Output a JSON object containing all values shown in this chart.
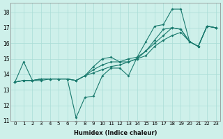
{
  "xlabel": "Humidex (Indice chaleur)",
  "background_color": "#cef0ea",
  "line_color": "#1a7a6e",
  "grid_color": "#aaddd6",
  "xlim": [
    -0.5,
    23.5
  ],
  "ylim": [
    11,
    18.6
  ],
  "yticks": [
    11,
    12,
    13,
    14,
    15,
    16,
    17,
    18
  ],
  "xticks": [
    0,
    1,
    2,
    3,
    4,
    5,
    6,
    7,
    8,
    9,
    10,
    11,
    12,
    13,
    14,
    15,
    16,
    17,
    18,
    19,
    20,
    21,
    22,
    23
  ],
  "series": [
    [
      13.5,
      14.8,
      13.6,
      13.6,
      13.7,
      13.7,
      13.7,
      11.2,
      12.5,
      12.6,
      13.9,
      14.4,
      14.4,
      13.9,
      15.1,
      16.1,
      17.1,
      17.2,
      18.2,
      18.2,
      16.1,
      15.8,
      17.1,
      17.0
    ],
    [
      13.5,
      13.6,
      13.6,
      13.7,
      13.7,
      13.7,
      13.7,
      13.6,
      13.9,
      14.5,
      15.0,
      15.1,
      14.8,
      15.0,
      15.1,
      15.5,
      16.2,
      16.9,
      17.0,
      16.9,
      16.1,
      15.8,
      17.1,
      17.0
    ],
    [
      13.5,
      13.6,
      13.6,
      13.7,
      13.7,
      13.7,
      13.7,
      13.6,
      13.9,
      14.3,
      14.6,
      14.8,
      14.8,
      14.8,
      15.0,
      15.5,
      16.0,
      16.5,
      17.0,
      16.9,
      16.1,
      15.8,
      17.1,
      17.0
    ],
    [
      13.5,
      13.6,
      13.6,
      13.7,
      13.7,
      13.7,
      13.7,
      13.6,
      13.9,
      14.1,
      14.3,
      14.5,
      14.6,
      14.8,
      15.0,
      15.2,
      15.8,
      16.2,
      16.5,
      16.7,
      16.1,
      15.8,
      17.1,
      17.0
    ]
  ]
}
